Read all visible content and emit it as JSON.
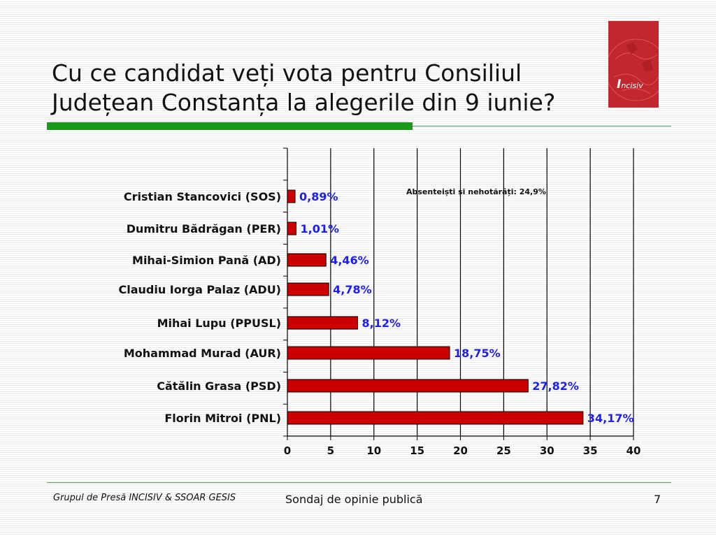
{
  "slide": {
    "title_line1": "Cu ce candidat veți vota pentru Consiliul",
    "title_line2": "Județean Constanța la alegerile din 9 iunie?",
    "logo_text_initial": "I",
    "logo_text_rest": "ncisiv",
    "footer_left": "Grupul de Presă INCISIV & SSOAR GESIS",
    "footer_center": "Sondaj de opinie publică",
    "page_number": "7"
  },
  "colors": {
    "bar_fill": "#cc0000",
    "value_label": "#1d1df0",
    "title_bar": "#1a9a1a",
    "logo_bg": "#c1272d"
  },
  "chart_data": {
    "type": "bar",
    "orientation": "horizontal",
    "categories": [
      "Cristian Stancovici (SOS)",
      "Dumitru Bădrăgan (PER)",
      "Mihai-Simion Pană (AD)",
      "Claudiu Iorga Palaz (ADU)",
      "Mihai Lupu (PPUSL)",
      "Mohammad Murad (AUR)",
      "Cătălin Grasa (PSD)",
      "Florin Mitroi (PNL)"
    ],
    "values": [
      0.89,
      1.01,
      4.46,
      4.78,
      8.12,
      18.75,
      27.82,
      34.17
    ],
    "value_labels": [
      "0,89%",
      "1,01%",
      "4,46%",
      "4,78%",
      "8,12%",
      "18,75%",
      "27,82%",
      "34,17%"
    ],
    "xlim": [
      0,
      40
    ],
    "xticks": [
      "0",
      "5",
      "10",
      "15",
      "20",
      "25",
      "30",
      "35",
      "40"
    ],
    "grid": "vertical",
    "annotation": "Absenteiști și nehotărâți: 24,9%"
  }
}
